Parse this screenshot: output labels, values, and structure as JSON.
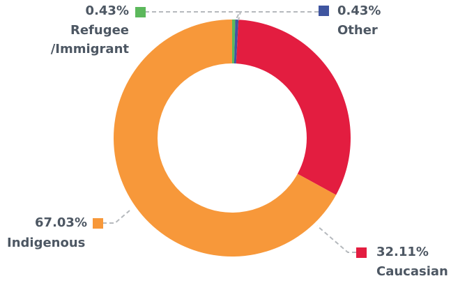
{
  "chart_data": {
    "type": "donut",
    "categories": [
      "Refugee\n/Immigrant",
      "Other",
      "Caucasian",
      "Indigenous"
    ],
    "values": [
      0.43,
      0.43,
      32.11,
      67.03
    ],
    "value_labels": [
      "0.43%",
      "0.43%",
      "32.11%",
      "67.03%"
    ],
    "colors": [
      "#5cb85c",
      "#3f55a0",
      "#e31d40",
      "#f7983a"
    ]
  }
}
